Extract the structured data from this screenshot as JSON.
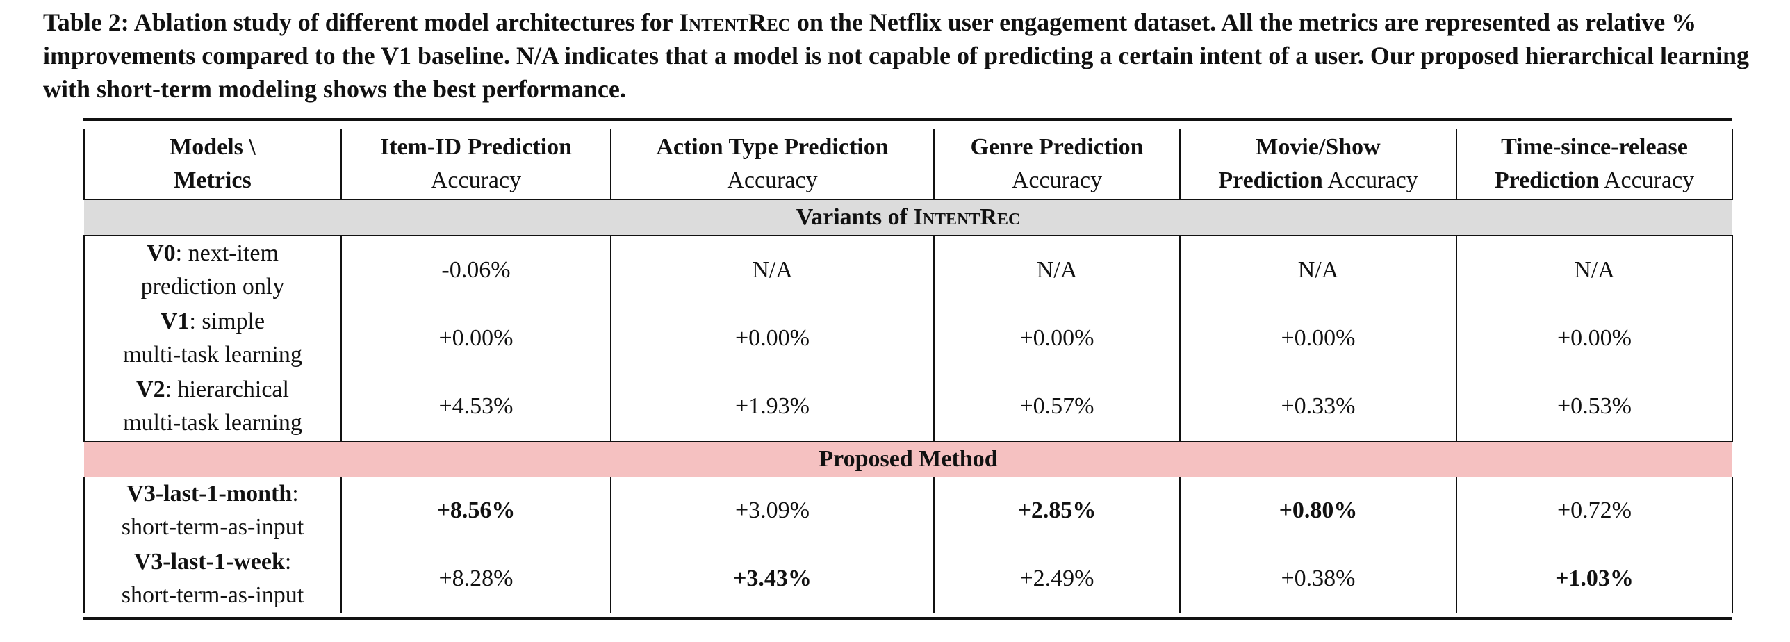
{
  "caption": {
    "prefix": "Table 2: Ablation study of different model architectures for ",
    "name": "IntentRec",
    "suffix": " on the Netflix user engagement dataset. All the metrics are represented as relative % improvements compared to the V1 baseline. N/A indicates that a model is not capable of predicting a certain intent of a user. Our proposed hierarchical learning with short-term modeling shows the best performance."
  },
  "header": {
    "models": [
      "Models \\",
      "Metrics"
    ],
    "cols": [
      {
        "bold": "Item-ID Prediction",
        "plain": "Accuracy"
      },
      {
        "bold": "Action Type Prediction",
        "plain": "Accuracy"
      },
      {
        "bold": "Genre Prediction",
        "plain": "Accuracy"
      },
      {
        "bold": "Movie/Show",
        "bold2": "Prediction",
        "plain": "Accuracy"
      },
      {
        "bold": "Time-since-release",
        "bold2": "Prediction",
        "plain": "Accuracy"
      }
    ]
  },
  "section1": {
    "prefix": "Variants of ",
    "name": "IntentRec"
  },
  "section2": {
    "label": "Proposed Method"
  },
  "rows": [
    {
      "name": "V0",
      "desc1": ": next-item",
      "desc2": "prediction only",
      "values": [
        "-0.06%",
        "N/A",
        "N/A",
        "N/A",
        "N/A"
      ]
    },
    {
      "name": "V1",
      "desc1": ": simple",
      "desc2": "multi-task learning",
      "values": [
        "+0.00%",
        "+0.00%",
        "+0.00%",
        "+0.00%",
        "+0.00%"
      ]
    },
    {
      "name": "V2",
      "desc1": ": hierarchical",
      "desc2": "multi-task learning",
      "values": [
        "+4.53%",
        "+1.93%",
        "+0.57%",
        "+0.33%",
        "+0.53%"
      ]
    },
    {
      "name": "V3-last-1-month",
      "desc1": ":",
      "desc2": "short-term-as-input",
      "values": [
        "+8.56%",
        "+3.09%",
        "+2.85%",
        "+0.80%",
        "+0.72%"
      ]
    },
    {
      "name": "V3-last-1-week",
      "desc1": ":",
      "desc2": "short-term-as-input",
      "values": [
        "+8.28%",
        "+3.43%",
        "+2.49%",
        "+0.38%",
        "+1.03%"
      ]
    }
  ]
}
